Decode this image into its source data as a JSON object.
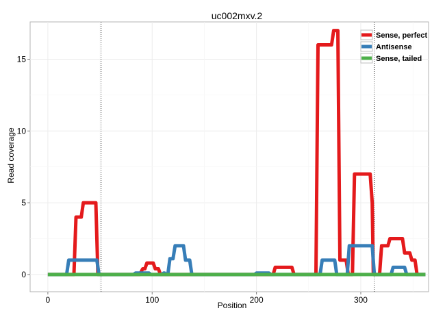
{
  "chart_data": {
    "type": "line",
    "title": "uc002mxv.2",
    "xlabel": "Position",
    "ylabel": "Read coverage",
    "xlim": [
      -17,
      365
    ],
    "ylim": [
      -1.2,
      17.6
    ],
    "x_ticks": [
      0,
      100,
      200,
      300
    ],
    "y_ticks": [
      0,
      5,
      10,
      15
    ],
    "grid": true,
    "legend_position": "top-right",
    "vlines": [
      51,
      313
    ],
    "series": [
      {
        "name": "Sense, perfect",
        "color": "#e41a1c",
        "points": [
          [
            0,
            0
          ],
          [
            25,
            0
          ],
          [
            27,
            4
          ],
          [
            32,
            4
          ],
          [
            34,
            5
          ],
          [
            46,
            5
          ],
          [
            48,
            0
          ],
          [
            88,
            0
          ],
          [
            91,
            0.4
          ],
          [
            93,
            0.4
          ],
          [
            95,
            0.8
          ],
          [
            101,
            0.8
          ],
          [
            103,
            0.4
          ],
          [
            106,
            0.4
          ],
          [
            108,
            0
          ],
          [
            216,
            0
          ],
          [
            218,
            0.5
          ],
          [
            234,
            0.5
          ],
          [
            236,
            0
          ],
          [
            257,
            0
          ],
          [
            259,
            16
          ],
          [
            272,
            16
          ],
          [
            274,
            17
          ],
          [
            278,
            17
          ],
          [
            280,
            1
          ],
          [
            286,
            1
          ],
          [
            288,
            0
          ],
          [
            292,
            0
          ],
          [
            294,
            7
          ],
          [
            309,
            7
          ],
          [
            311,
            5
          ],
          [
            312,
            0
          ],
          [
            318,
            0
          ],
          [
            320,
            2
          ],
          [
            326,
            2
          ],
          [
            328,
            2.5
          ],
          [
            340,
            2.5
          ],
          [
            342,
            1.5
          ],
          [
            347,
            1.5
          ],
          [
            349,
            1
          ],
          [
            352,
            1
          ],
          [
            354,
            0
          ],
          [
            362,
            0
          ]
        ]
      },
      {
        "name": "Antisense",
        "color": "#377eb8",
        "points": [
          [
            0,
            0
          ],
          [
            18,
            0
          ],
          [
            20,
            1
          ],
          [
            47,
            1
          ],
          [
            49,
            0
          ],
          [
            82,
            0
          ],
          [
            84,
            0.1
          ],
          [
            97,
            0.1
          ],
          [
            99,
            0
          ],
          [
            109,
            0
          ],
          [
            111,
            0.1
          ],
          [
            112,
            0.1
          ],
          [
            113,
            0
          ],
          [
            115,
            0
          ],
          [
            117,
            1.1
          ],
          [
            120,
            1.1
          ],
          [
            122,
            2
          ],
          [
            130,
            2
          ],
          [
            132,
            1
          ],
          [
            136,
            1
          ],
          [
            138,
            0
          ],
          [
            198,
            0
          ],
          [
            200,
            0.1
          ],
          [
            212,
            0.1
          ],
          [
            214,
            0
          ],
          [
            261,
            0
          ],
          [
            263,
            1
          ],
          [
            275,
            1
          ],
          [
            277,
            0
          ],
          [
            287,
            0
          ],
          [
            289,
            2
          ],
          [
            311,
            2
          ],
          [
            313,
            0
          ],
          [
            329,
            0
          ],
          [
            331,
            0.5
          ],
          [
            342,
            0.5
          ],
          [
            344,
            0
          ],
          [
            362,
            0
          ]
        ]
      },
      {
        "name": "Sense, tailed",
        "color": "#4daf4a",
        "points": [
          [
            0,
            0
          ],
          [
            362,
            0
          ]
        ]
      }
    ]
  }
}
